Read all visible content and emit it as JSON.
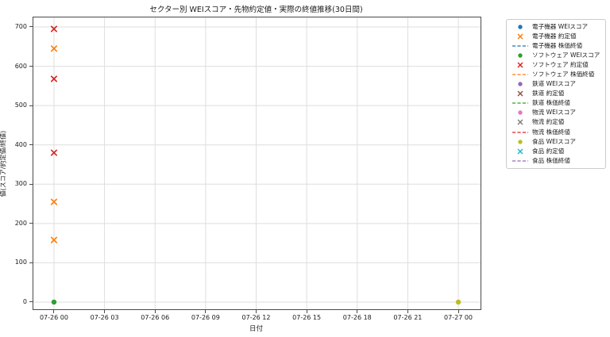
{
  "chart_data": {
    "type": "scatter",
    "title": "セクター別 WEIスコア・先物約定値・実際の終値推移(30日間)",
    "xlabel": "日付",
    "ylabel": "値(スコア/約定値/終値)",
    "grid": true,
    "legend_position": "outside-upper-right",
    "x_unit": "hours-from-07-26-00",
    "xlim_hours": [
      -1.224,
      25.318
    ],
    "ylim": [
      -18.2,
      724.2
    ],
    "x_ticks": [
      {
        "hour": 0,
        "label": "07-26 00"
      },
      {
        "hour": 3,
        "label": "07-26 03"
      },
      {
        "hour": 6,
        "label": "07-26 06"
      },
      {
        "hour": 9,
        "label": "07-26 09"
      },
      {
        "hour": 12,
        "label": "07-26 12"
      },
      {
        "hour": 15,
        "label": "07-26 15"
      },
      {
        "hour": 18,
        "label": "07-26 18"
      },
      {
        "hour": 21,
        "label": "07-26 21"
      },
      {
        "hour": 24,
        "label": "07-27 00"
      }
    ],
    "y_ticks": [
      0,
      100,
      200,
      300,
      400,
      500,
      600,
      700
    ],
    "series": [
      {
        "name": "電子機器 WEIスコア",
        "marker": "dot",
        "color": "#1f77b4",
        "points": []
      },
      {
        "name": "電子機器 約定値",
        "marker": "x",
        "color": "#ff7f0e",
        "points": [
          {
            "x": 0,
            "y": 645
          },
          {
            "x": 0,
            "y": 255
          },
          {
            "x": 0,
            "y": 158
          }
        ]
      },
      {
        "name": "電子機器 株価終値",
        "marker": "dash",
        "color": "#1f77b4",
        "points": []
      },
      {
        "name": "ソフトウェア WEIスコア",
        "marker": "dot",
        "color": "#2ca02c",
        "points": [
          {
            "x": 0,
            "y": 0
          }
        ]
      },
      {
        "name": "ソフトウェア 約定値",
        "marker": "x",
        "color": "#d62728",
        "points": [
          {
            "x": 0,
            "y": 695
          },
          {
            "x": 0,
            "y": 568
          },
          {
            "x": 0,
            "y": 380
          }
        ]
      },
      {
        "name": "ソフトウェア 株価終値",
        "marker": "dash",
        "color": "#ff7f0e",
        "points": []
      },
      {
        "name": "鉄道 WEIスコア",
        "marker": "dot",
        "color": "#9467bd",
        "points": []
      },
      {
        "name": "鉄道 約定値",
        "marker": "x",
        "color": "#8c564b",
        "points": []
      },
      {
        "name": "鉄道 株価終値",
        "marker": "dash",
        "color": "#2ca02c",
        "points": []
      },
      {
        "name": "物流 WEIスコア",
        "marker": "dot",
        "color": "#e377c2",
        "points": []
      },
      {
        "name": "物流 約定値",
        "marker": "x",
        "color": "#7f7f7f",
        "points": []
      },
      {
        "name": "物流 株価終値",
        "marker": "dash",
        "color": "#d62728",
        "points": []
      },
      {
        "name": "食品 WEIスコア",
        "marker": "dot",
        "color": "#bcbd22",
        "points": [
          {
            "x": 24,
            "y": 0
          }
        ]
      },
      {
        "name": "食品 約定値",
        "marker": "x",
        "color": "#17becf",
        "points": []
      },
      {
        "name": "食品 株価終値",
        "marker": "dash",
        "color": "#9467bd",
        "points": []
      }
    ],
    "grid_color": "#dedede"
  }
}
